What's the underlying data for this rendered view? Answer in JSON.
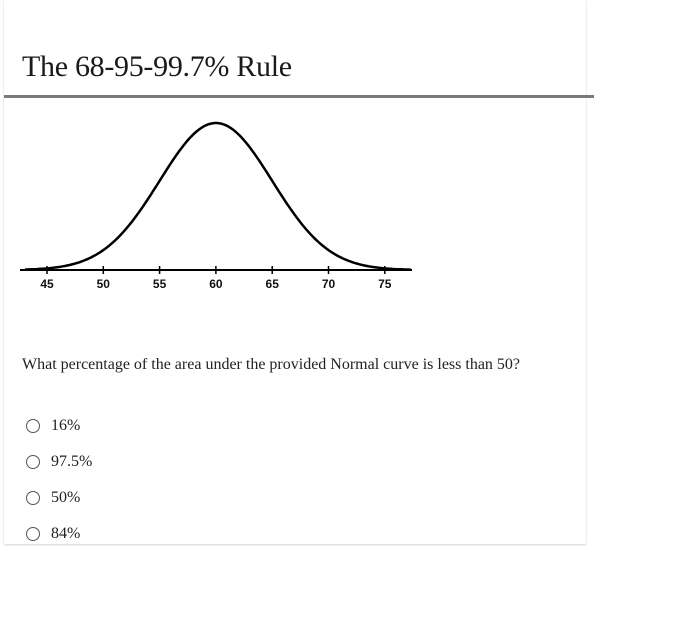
{
  "title": "The 68-95-99.7% Rule",
  "figure": {
    "curve": "normal",
    "mean": 60,
    "sd": 5,
    "tick_labels": [
      "45",
      "50",
      "55",
      "60",
      "65",
      "70",
      "75"
    ]
  },
  "question": "What percentage of the area under the provided Normal curve is less than 50?",
  "options": [
    {
      "label": "16%"
    },
    {
      "label": "97.5%"
    },
    {
      "label": "50%"
    },
    {
      "label": "84%"
    }
  ]
}
